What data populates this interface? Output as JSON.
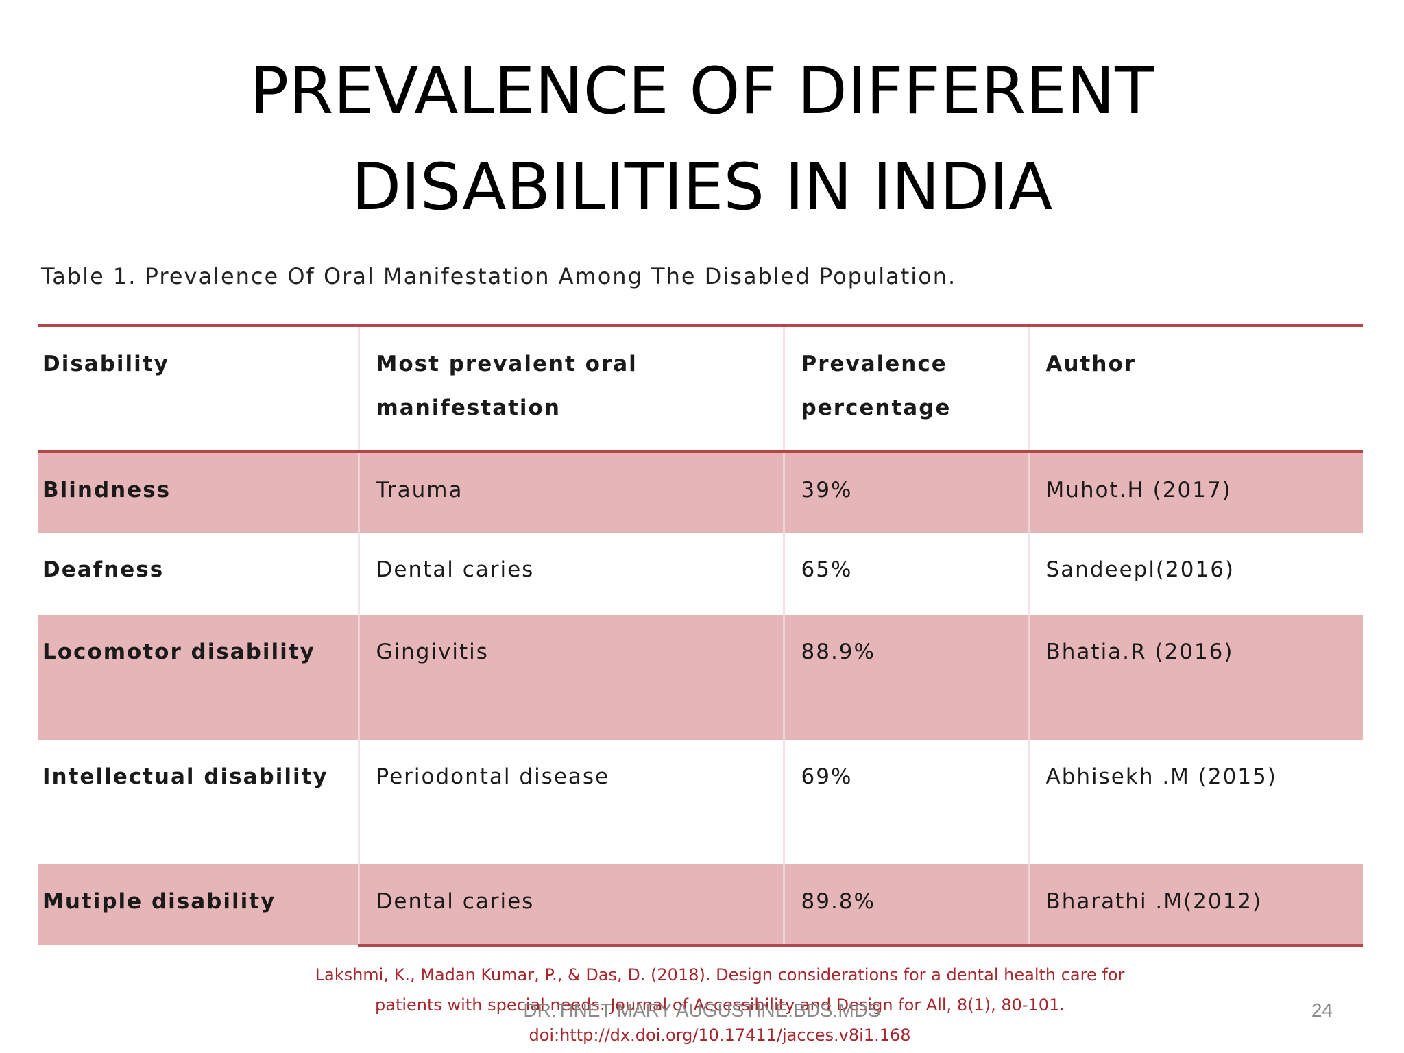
{
  "slide": {
    "title_line1": "PREVALENCE OF DIFFERENT",
    "title_line2": "DISABILITIES IN INDIA",
    "table_caption": "Table 1. Prevalence Of Oral Manifestation Among The Disabled Population.",
    "footer": "DR.TINET MARY AUGUSTINE.BDS.MDS",
    "page_number": "24"
  },
  "table": {
    "headers": {
      "disability": "Disability",
      "manifestation": "Most prevalent oral manifestation",
      "prevalence": "Prevalence percentage",
      "author": "Author"
    },
    "rows": [
      {
        "disability": "Blindness",
        "manifestation": "Trauma",
        "prevalence": "39%",
        "author": "Muhot.H (2017)"
      },
      {
        "disability": "Deafness",
        "manifestation": "Dental caries",
        "prevalence": "65%",
        "author": "Sandeepl(2016)"
      },
      {
        "disability": "Locomotor disability",
        "manifestation": "Gingivitis",
        "prevalence": "88.9%",
        "author": "Bhatia.R (2016)"
      },
      {
        "disability": "Intellectual disability",
        "manifestation": "Periodontal disease",
        "prevalence": "69%",
        "author": "Abhisekh .M (2015)"
      },
      {
        "disability": "Mutiple disability",
        "manifestation": "Dental caries",
        "prevalence": "89.8%",
        "author": "Bharathi .M(2012)"
      }
    ]
  },
  "reference": {
    "line1": "Lakshmi, K., Madan Kumar, P., & Das, D. (2018). Design considerations for a dental health care for",
    "line2": "patients with special needs. Journal of Accessibility and Design for All, 8(1), 80-101.",
    "line3": "doi:http://dx.doi.org/10.17411/jacces.v8i1.168"
  },
  "colors": {
    "rule": "#b5474b",
    "shaded_row": "#e6b5b8",
    "reference_text": "#a8262b"
  }
}
